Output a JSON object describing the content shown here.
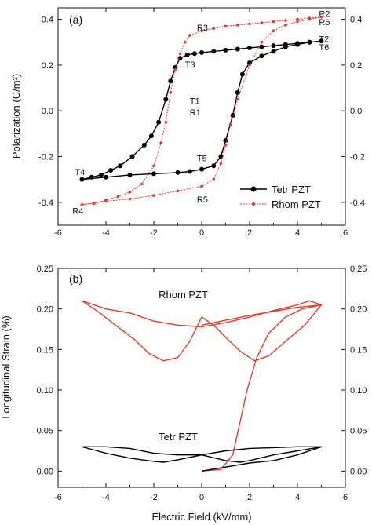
{
  "chart_data": [
    {
      "type": "line",
      "panel_label": "(a)",
      "ylabel": "Polarization (C/m²)",
      "xlim": [
        -6,
        6
      ],
      "ylim": [
        -0.5,
        0.45
      ],
      "xticks": [
        -6,
        -4,
        -2,
        0,
        2,
        4,
        6
      ],
      "yticks": [
        -0.4,
        -0.2,
        0.0,
        0.2,
        0.4
      ],
      "ytick_labels": [
        "-0.4",
        "-0.2",
        "0.0",
        "0.2",
        "0.4"
      ],
      "legend_position": "lower-right",
      "series": [
        {
          "name": "Tetr PZT",
          "color": "#000000",
          "marker": "circle",
          "x": [
            -5,
            -4.6,
            -4.2,
            -3.8,
            -3.4,
            -2.9,
            -2.4,
            -2.1,
            -1.8,
            -1.5,
            -1.3,
            -1.1,
            -0.9,
            -0.6,
            -0.3,
            0,
            0.5,
            1.0,
            1.5,
            2.0,
            2.5,
            3.0,
            3.5,
            4.0,
            4.5,
            5.0,
            4.5,
            4.0,
            3.5,
            3.0,
            2.5,
            2.0,
            1.7,
            1.5,
            1.3,
            1.0,
            0.8,
            0.5,
            0,
            -0.5,
            -1.0,
            -2.0,
            -3.0,
            -4.0,
            -5.0
          ],
          "y": [
            -0.3,
            -0.29,
            -0.28,
            -0.26,
            -0.24,
            -0.2,
            -0.15,
            -0.11,
            -0.05,
            0.05,
            0.13,
            0.19,
            0.23,
            0.245,
            0.25,
            0.255,
            0.26,
            0.265,
            0.27,
            0.275,
            0.28,
            0.285,
            0.29,
            0.295,
            0.3,
            0.305,
            0.3,
            0.29,
            0.28,
            0.26,
            0.24,
            0.21,
            0.16,
            0.08,
            -0.02,
            -0.13,
            -0.2,
            -0.24,
            -0.255,
            -0.265,
            -0.27,
            -0.275,
            -0.28,
            -0.29,
            -0.3
          ]
        },
        {
          "name": "Rhom PZT",
          "color": "#e8382a",
          "marker": "dot",
          "x": [
            -5,
            -4.5,
            -4.0,
            -3.5,
            -3.0,
            -2.5,
            -2.0,
            -1.7,
            -1.5,
            -1.3,
            -1.1,
            -0.9,
            -0.7,
            -0.5,
            0,
            0.5,
            1.0,
            1.5,
            2.0,
            2.5,
            3.0,
            3.5,
            4.0,
            4.5,
            5.0,
            4.5,
            4.0,
            3.5,
            3.0,
            2.5,
            2.0,
            1.5,
            1.2,
            1.0,
            0.8,
            0.5,
            0,
            -1.0,
            -2.0,
            -3.0,
            -4.0,
            -5.0
          ],
          "y": [
            -0.41,
            -0.405,
            -0.39,
            -0.375,
            -0.355,
            -0.32,
            -0.24,
            -0.14,
            -0.05,
            0.08,
            0.18,
            0.25,
            0.3,
            0.33,
            0.35,
            0.36,
            0.37,
            0.375,
            0.38,
            0.385,
            0.39,
            0.395,
            0.4,
            0.405,
            0.41,
            0.4,
            0.39,
            0.375,
            0.35,
            0.3,
            0.2,
            0.05,
            -0.06,
            -0.15,
            -0.23,
            -0.3,
            -0.33,
            -0.35,
            -0.37,
            -0.385,
            -0.395,
            -0.41
          ]
        }
      ],
      "annotations": [
        {
          "text": "R2",
          "x": 4.9,
          "y": 0.41
        },
        {
          "text": "R6",
          "x": 4.9,
          "y": 0.375
        },
        {
          "text": "T2",
          "x": 4.9,
          "y": 0.3
        },
        {
          "text": "T6",
          "x": 4.9,
          "y": 0.265
        },
        {
          "text": "R3",
          "x": -0.2,
          "y": 0.35
        },
        {
          "text": "T3",
          "x": -0.7,
          "y": 0.19
        },
        {
          "text": "T1",
          "x": -0.5,
          "y": 0.03
        },
        {
          "text": "R1",
          "x": -0.5,
          "y": -0.02
        },
        {
          "text": "T4",
          "x": -5.3,
          "y": -0.28
        },
        {
          "text": "T5",
          "x": -0.2,
          "y": -0.22
        },
        {
          "text": "R4",
          "x": -5.4,
          "y": -0.45
        },
        {
          "text": "R5",
          "x": -0.2,
          "y": -0.4
        }
      ]
    },
    {
      "type": "line",
      "panel_label": "(b)",
      "xlabel": "Electric Field (kV/mm)",
      "ylabel": "Longitudinal Strain (%)",
      "xlim": [
        -6,
        6
      ],
      "ylim": [
        -0.02,
        0.25
      ],
      "xticks": [
        -6,
        -4,
        -2,
        0,
        2,
        4,
        6
      ],
      "yticks": [
        0.0,
        0.05,
        0.1,
        0.15,
        0.2,
        0.25
      ],
      "ytick_labels": [
        "0.00",
        "0.05",
        "0.10",
        "0.15",
        "0.20",
        "0.25"
      ],
      "series": [
        {
          "name": "Rhom PZT",
          "color": "#e8382a",
          "x": [
            0,
            0.8,
            1.3,
            1.6,
            1.9,
            2.3,
            2.8,
            3.5,
            4.2,
            5.0,
            4.3,
            3.5,
            2.8,
            2.2,
            1.6,
            1.0,
            0.5,
            0,
            -0.5,
            -1.0,
            -1.6,
            -2.2,
            -2.8,
            -3.6,
            -4.3,
            -5.0,
            -4.0,
            -3.0,
            -2.0,
            -1.0,
            0,
            1.0,
            2.0,
            3.0,
            4.0,
            4.5,
            5.0,
            4.0,
            3.0,
            2.0,
            1.0,
            0
          ],
          "y": [
            0,
            0.002,
            0.02,
            0.06,
            0.1,
            0.14,
            0.17,
            0.19,
            0.2,
            0.205,
            0.18,
            0.16,
            0.142,
            0.136,
            0.148,
            0.165,
            0.18,
            0.19,
            0.16,
            0.14,
            0.136,
            0.145,
            0.162,
            0.18,
            0.196,
            0.21,
            0.2,
            0.195,
            0.185,
            0.18,
            0.178,
            0.183,
            0.19,
            0.198,
            0.205,
            0.21,
            0.205,
            0.202,
            0.197,
            0.192,
            0.186,
            0.18
          ]
        },
        {
          "name": "Tetr PZT",
          "color": "#000000",
          "x": [
            0,
            1.0,
            2.0,
            3.0,
            4.0,
            5.0,
            4.0,
            3.0,
            2.0,
            1.6,
            1.0,
            0,
            -1.0,
            -1.6,
            -2.0,
            -3.0,
            -4.0,
            -5.0,
            -4.0,
            -3.0,
            -2.0,
            -1.0,
            0,
            1.0,
            2.0,
            3.0,
            4.0,
            5.0
          ],
          "y": [
            0,
            0.005,
            0.01,
            0.013,
            0.02,
            0.03,
            0.025,
            0.02,
            0.013,
            0.011,
            0.013,
            0.02,
            0.014,
            0.011,
            0.012,
            0.016,
            0.022,
            0.03,
            0.03,
            0.028,
            0.022,
            0.02,
            0.02,
            0.025,
            0.028,
            0.029,
            0.03,
            0.03
          ]
        }
      ],
      "annotations": [
        {
          "text": "Rhom PZT",
          "x": -1.8,
          "y": 0.213
        },
        {
          "text": "Tetr PZT",
          "x": -1.8,
          "y": 0.038
        }
      ]
    }
  ]
}
